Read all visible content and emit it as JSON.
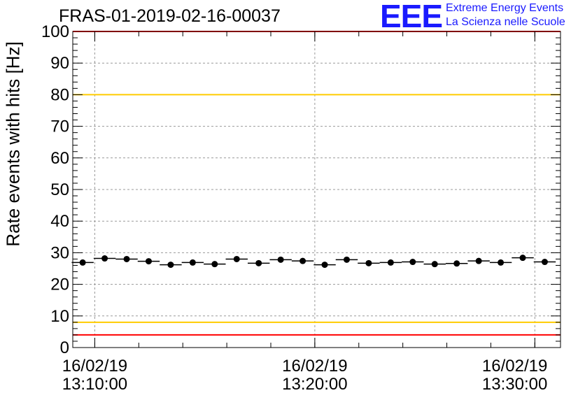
{
  "header": {
    "title": "FRAS-01-2019-02-16-00037",
    "logo_text": "EEE",
    "logo_line1": "Extreme Energy Events",
    "logo_line2": "La Scienza nelle Scuole"
  },
  "colors": {
    "logo": "#1a1aff",
    "red_limit": "#ff0000",
    "yellow_limit": "#ffcc00",
    "marker": "#000000",
    "grid": "#999999"
  },
  "chart_data": {
    "type": "scatter",
    "title": "FRAS-01-2019-02-16-00037",
    "ylabel": "Rate events with hits [Hz]",
    "xlabel": "",
    "ylim": [
      0,
      100
    ],
    "y_ticks": [
      "0",
      "10",
      "20",
      "30",
      "40",
      "50",
      "60",
      "70",
      "80",
      "90",
      "100"
    ],
    "x_tick_labels": [
      {
        "date": "16/02/19",
        "time": "13:10:00"
      },
      {
        "date": "16/02/19",
        "time": "13:20:00"
      },
      {
        "date": "16/02/19",
        "time": "13:30:00"
      }
    ],
    "x_range": [
      "13:09:00",
      "13:31:10"
    ],
    "grid": true,
    "reference_lines": [
      {
        "y": 100,
        "color": "red"
      },
      {
        "y": 80,
        "color": "yellow"
      },
      {
        "y": 8,
        "color": "yellow"
      },
      {
        "y": 4,
        "color": "red"
      }
    ],
    "series": [
      {
        "points": [
          {
            "x": "13:09:27",
            "y": 26.9
          },
          {
            "x": "13:10:27",
            "y": 28.2
          },
          {
            "x": "13:11:27",
            "y": 28.0
          },
          {
            "x": "13:12:27",
            "y": 27.3
          },
          {
            "x": "13:13:27",
            "y": 26.2
          },
          {
            "x": "13:14:27",
            "y": 26.9
          },
          {
            "x": "13:15:27",
            "y": 26.4
          },
          {
            "x": "13:16:27",
            "y": 28.0
          },
          {
            "x": "13:17:27",
            "y": 26.7
          },
          {
            "x": "13:18:27",
            "y": 27.8
          },
          {
            "x": "13:19:27",
            "y": 27.4
          },
          {
            "x": "13:20:27",
            "y": 26.2
          },
          {
            "x": "13:21:27",
            "y": 27.8
          },
          {
            "x": "13:22:27",
            "y": 26.7
          },
          {
            "x": "13:23:27",
            "y": 26.9
          },
          {
            "x": "13:24:27",
            "y": 27.1
          },
          {
            "x": "13:25:27",
            "y": 26.4
          },
          {
            "x": "13:26:27",
            "y": 26.6
          },
          {
            "x": "13:27:27",
            "y": 27.4
          },
          {
            "x": "13:28:27",
            "y": 26.9
          },
          {
            "x": "13:29:27",
            "y": 28.4
          },
          {
            "x": "13:30:27",
            "y": 27.1
          }
        ]
      }
    ]
  }
}
